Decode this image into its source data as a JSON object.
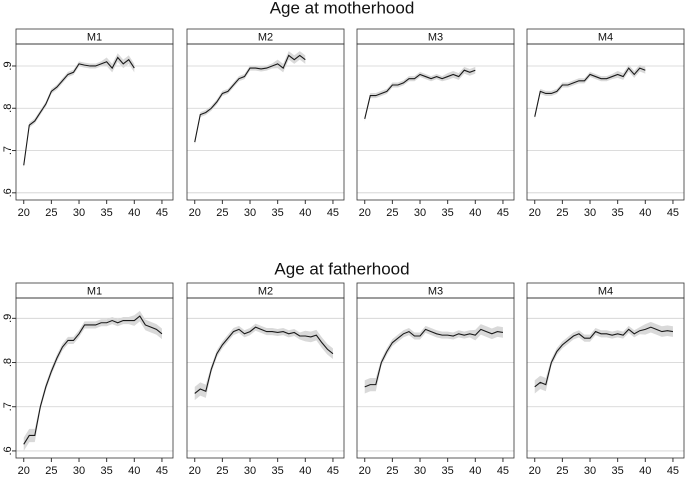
{
  "chart_data": [
    {
      "type": "line",
      "title": "Age at motherhood",
      "panel": "M1",
      "color": "#1a1a1a",
      "band_color": "#d9d9d9",
      "grid": true,
      "xlim": [
        18.6,
        47
      ],
      "ylim": [
        0.583,
        0.952
      ],
      "xticks": [
        20,
        25,
        30,
        35,
        40,
        45
      ],
      "yticks": [
        {
          "value": 0.6,
          "label": ".6"
        },
        {
          "value": 0.7,
          "label": ".7"
        },
        {
          "value": 0.8,
          "label": ".8"
        },
        {
          "value": 0.9,
          "label": ".9"
        }
      ],
      "x": [
        20,
        21,
        22,
        23,
        24,
        25,
        26,
        27,
        28,
        29,
        30,
        31,
        32,
        33,
        34,
        35,
        36,
        37,
        38,
        39,
        40
      ],
      "values": [
        0.665,
        0.76,
        0.77,
        0.79,
        0.81,
        0.84,
        0.85,
        0.865,
        0.88,
        0.885,
        0.905,
        0.902,
        0.9,
        0.9,
        0.905,
        0.91,
        0.895,
        0.92,
        0.905,
        0.915,
        0.895
      ],
      "ci": [
        0.006,
        0.006,
        0.006,
        0.006,
        0.006,
        0.006,
        0.006,
        0.006,
        0.006,
        0.006,
        0.006,
        0.006,
        0.006,
        0.006,
        0.006,
        0.01,
        0.01,
        0.01,
        0.01,
        0.01,
        0.01
      ]
    },
    {
      "type": "line",
      "panel": "M2",
      "color": "#1a1a1a",
      "band_color": "#d9d9d9",
      "grid": true,
      "xlim": [
        18.6,
        47
      ],
      "ylim": [
        0.583,
        0.952
      ],
      "xticks": [
        20,
        25,
        30,
        35,
        40,
        45
      ],
      "yticks": [
        {
          "value": 0.6,
          "label": ".6"
        },
        {
          "value": 0.7,
          "label": ".7"
        },
        {
          "value": 0.8,
          "label": ".8"
        },
        {
          "value": 0.9,
          "label": ".9"
        }
      ],
      "x": [
        20,
        21,
        22,
        23,
        24,
        25,
        26,
        27,
        28,
        29,
        30,
        31,
        32,
        33,
        34,
        35,
        36,
        37,
        38,
        39,
        40
      ],
      "values": [
        0.72,
        0.785,
        0.79,
        0.8,
        0.815,
        0.835,
        0.84,
        0.855,
        0.87,
        0.875,
        0.895,
        0.895,
        0.893,
        0.895,
        0.9,
        0.905,
        0.895,
        0.925,
        0.915,
        0.925,
        0.915
      ],
      "ci": [
        0.006,
        0.006,
        0.006,
        0.006,
        0.006,
        0.006,
        0.006,
        0.006,
        0.006,
        0.006,
        0.006,
        0.006,
        0.006,
        0.006,
        0.006,
        0.01,
        0.01,
        0.01,
        0.01,
        0.01,
        0.01
      ]
    },
    {
      "type": "line",
      "panel": "M3",
      "color": "#1a1a1a",
      "band_color": "#d9d9d9",
      "grid": true,
      "xlim": [
        18.6,
        47
      ],
      "ylim": [
        0.583,
        0.952
      ],
      "xticks": [
        20,
        25,
        30,
        35,
        40,
        45
      ],
      "yticks": [
        {
          "value": 0.6,
          "label": ".6"
        },
        {
          "value": 0.7,
          "label": ".7"
        },
        {
          "value": 0.8,
          "label": ".8"
        },
        {
          "value": 0.9,
          "label": ".9"
        }
      ],
      "x": [
        20,
        21,
        22,
        23,
        24,
        25,
        26,
        27,
        28,
        29,
        30,
        31,
        32,
        33,
        34,
        35,
        36,
        37,
        38,
        39,
        40
      ],
      "values": [
        0.775,
        0.83,
        0.83,
        0.835,
        0.84,
        0.855,
        0.855,
        0.86,
        0.87,
        0.87,
        0.88,
        0.875,
        0.87,
        0.875,
        0.87,
        0.875,
        0.88,
        0.875,
        0.89,
        0.885,
        0.89
      ],
      "ci": [
        0.006,
        0.006,
        0.006,
        0.006,
        0.006,
        0.006,
        0.006,
        0.006,
        0.006,
        0.006,
        0.006,
        0.006,
        0.006,
        0.006,
        0.006,
        0.008,
        0.008,
        0.008,
        0.008,
        0.008,
        0.008
      ]
    },
    {
      "type": "line",
      "panel": "M4",
      "color": "#1a1a1a",
      "band_color": "#d9d9d9",
      "grid": true,
      "xlim": [
        18.6,
        47
      ],
      "ylim": [
        0.583,
        0.952
      ],
      "xticks": [
        20,
        25,
        30,
        35,
        40,
        45
      ],
      "yticks": [
        {
          "value": 0.6,
          "label": ".6"
        },
        {
          "value": 0.7,
          "label": ".7"
        },
        {
          "value": 0.8,
          "label": ".8"
        },
        {
          "value": 0.9,
          "label": ".9"
        }
      ],
      "x": [
        20,
        21,
        22,
        23,
        24,
        25,
        26,
        27,
        28,
        29,
        30,
        31,
        32,
        33,
        34,
        35,
        36,
        37,
        38,
        39,
        40
      ],
      "values": [
        0.78,
        0.84,
        0.835,
        0.835,
        0.84,
        0.855,
        0.855,
        0.86,
        0.865,
        0.865,
        0.88,
        0.875,
        0.87,
        0.87,
        0.875,
        0.88,
        0.875,
        0.895,
        0.88,
        0.895,
        0.89
      ],
      "ci": [
        0.006,
        0.006,
        0.006,
        0.006,
        0.006,
        0.006,
        0.006,
        0.006,
        0.006,
        0.006,
        0.006,
        0.006,
        0.006,
        0.006,
        0.006,
        0.008,
        0.008,
        0.008,
        0.008,
        0.008,
        0.008
      ]
    },
    {
      "type": "line",
      "title": "Age at fatherhood",
      "panel": "M1",
      "color": "#1a1a1a",
      "band_color": "#d9d9d9",
      "grid": true,
      "xlim": [
        18.6,
        47
      ],
      "ylim": [
        0.584,
        0.946
      ],
      "xticks": [
        20,
        25,
        30,
        35,
        40,
        45
      ],
      "yticks": [
        {
          "value": 0.6,
          "label": ".6"
        },
        {
          "value": 0.7,
          "label": ".7"
        },
        {
          "value": 0.8,
          "label": ".8"
        },
        {
          "value": 0.9,
          "label": ".9"
        }
      ],
      "x": [
        20,
        21,
        22,
        23,
        24,
        25,
        26,
        27,
        28,
        29,
        30,
        31,
        32,
        33,
        34,
        35,
        36,
        37,
        38,
        39,
        40,
        41,
        42,
        43,
        44,
        45
      ],
      "values": [
        0.615,
        0.635,
        0.635,
        0.7,
        0.745,
        0.78,
        0.81,
        0.835,
        0.85,
        0.85,
        0.865,
        0.885,
        0.885,
        0.885,
        0.89,
        0.89,
        0.895,
        0.89,
        0.895,
        0.895,
        0.895,
        0.905,
        0.885,
        0.88,
        0.875,
        0.865
      ],
      "ci": [
        0.015,
        0.015,
        0.015,
        0.008,
        0.008,
        0.008,
        0.008,
        0.008,
        0.008,
        0.008,
        0.008,
        0.008,
        0.008,
        0.008,
        0.008,
        0.008,
        0.008,
        0.008,
        0.008,
        0.008,
        0.012,
        0.012,
        0.012,
        0.012,
        0.012,
        0.012
      ]
    },
    {
      "type": "line",
      "panel": "M2",
      "color": "#1a1a1a",
      "band_color": "#d9d9d9",
      "grid": true,
      "xlim": [
        18.6,
        47
      ],
      "ylim": [
        0.584,
        0.946
      ],
      "xticks": [
        20,
        25,
        30,
        35,
        40,
        45
      ],
      "yticks": [
        {
          "value": 0.6,
          "label": ".6"
        },
        {
          "value": 0.7,
          "label": ".7"
        },
        {
          "value": 0.8,
          "label": ".8"
        },
        {
          "value": 0.9,
          "label": ".9"
        }
      ],
      "x": [
        20,
        21,
        22,
        23,
        24,
        25,
        26,
        27,
        28,
        29,
        30,
        31,
        32,
        33,
        34,
        35,
        36,
        37,
        38,
        39,
        40,
        41,
        42,
        43,
        44,
        45
      ],
      "values": [
        0.73,
        0.74,
        0.735,
        0.785,
        0.82,
        0.84,
        0.855,
        0.87,
        0.875,
        0.865,
        0.87,
        0.88,
        0.875,
        0.87,
        0.87,
        0.868,
        0.87,
        0.865,
        0.868,
        0.86,
        0.86,
        0.858,
        0.862,
        0.845,
        0.83,
        0.82
      ],
      "ci": [
        0.015,
        0.015,
        0.015,
        0.008,
        0.008,
        0.008,
        0.008,
        0.008,
        0.008,
        0.008,
        0.008,
        0.008,
        0.008,
        0.008,
        0.008,
        0.008,
        0.008,
        0.008,
        0.008,
        0.008,
        0.012,
        0.012,
        0.012,
        0.012,
        0.012,
        0.012
      ]
    },
    {
      "type": "line",
      "panel": "M3",
      "color": "#1a1a1a",
      "band_color": "#d9d9d9",
      "grid": true,
      "xlim": [
        18.6,
        47
      ],
      "ylim": [
        0.584,
        0.946
      ],
      "xticks": [
        20,
        25,
        30,
        35,
        40,
        45
      ],
      "yticks": [
        {
          "value": 0.6,
          "label": ".6"
        },
        {
          "value": 0.7,
          "label": ".7"
        },
        {
          "value": 0.8,
          "label": ".8"
        },
        {
          "value": 0.9,
          "label": ".9"
        }
      ],
      "x": [
        20,
        21,
        22,
        23,
        24,
        25,
        26,
        27,
        28,
        29,
        30,
        31,
        32,
        33,
        34,
        35,
        36,
        37,
        38,
        39,
        40,
        41,
        42,
        43,
        44,
        45
      ],
      "values": [
        0.745,
        0.75,
        0.75,
        0.8,
        0.825,
        0.845,
        0.855,
        0.865,
        0.87,
        0.86,
        0.86,
        0.875,
        0.87,
        0.865,
        0.862,
        0.862,
        0.86,
        0.865,
        0.862,
        0.865,
        0.862,
        0.875,
        0.87,
        0.865,
        0.87,
        0.868
      ],
      "ci": [
        0.015,
        0.015,
        0.015,
        0.008,
        0.008,
        0.008,
        0.008,
        0.008,
        0.008,
        0.008,
        0.008,
        0.008,
        0.008,
        0.008,
        0.008,
        0.008,
        0.008,
        0.008,
        0.008,
        0.008,
        0.012,
        0.012,
        0.012,
        0.012,
        0.012,
        0.012
      ]
    },
    {
      "type": "line",
      "panel": "M4",
      "color": "#1a1a1a",
      "band_color": "#d9d9d9",
      "grid": true,
      "xlim": [
        18.6,
        47
      ],
      "ylim": [
        0.584,
        0.946
      ],
      "xticks": [
        20,
        25,
        30,
        35,
        40,
        45
      ],
      "yticks": [
        {
          "value": 0.6,
          "label": ".6"
        },
        {
          "value": 0.7,
          "label": ".7"
        },
        {
          "value": 0.8,
          "label": ".8"
        },
        {
          "value": 0.9,
          "label": ".9"
        }
      ],
      "x": [
        20,
        21,
        22,
        23,
        24,
        25,
        26,
        27,
        28,
        29,
        30,
        31,
        32,
        33,
        34,
        35,
        36,
        37,
        38,
        39,
        40,
        41,
        42,
        43,
        44,
        45
      ],
      "values": [
        0.745,
        0.755,
        0.75,
        0.8,
        0.825,
        0.84,
        0.85,
        0.86,
        0.865,
        0.855,
        0.855,
        0.87,
        0.865,
        0.865,
        0.862,
        0.865,
        0.862,
        0.875,
        0.865,
        0.872,
        0.875,
        0.88,
        0.875,
        0.87,
        0.872,
        0.87
      ],
      "ci": [
        0.015,
        0.015,
        0.015,
        0.008,
        0.008,
        0.008,
        0.008,
        0.008,
        0.008,
        0.008,
        0.008,
        0.008,
        0.008,
        0.008,
        0.008,
        0.008,
        0.008,
        0.008,
        0.008,
        0.008,
        0.012,
        0.012,
        0.012,
        0.012,
        0.012,
        0.012
      ]
    }
  ]
}
